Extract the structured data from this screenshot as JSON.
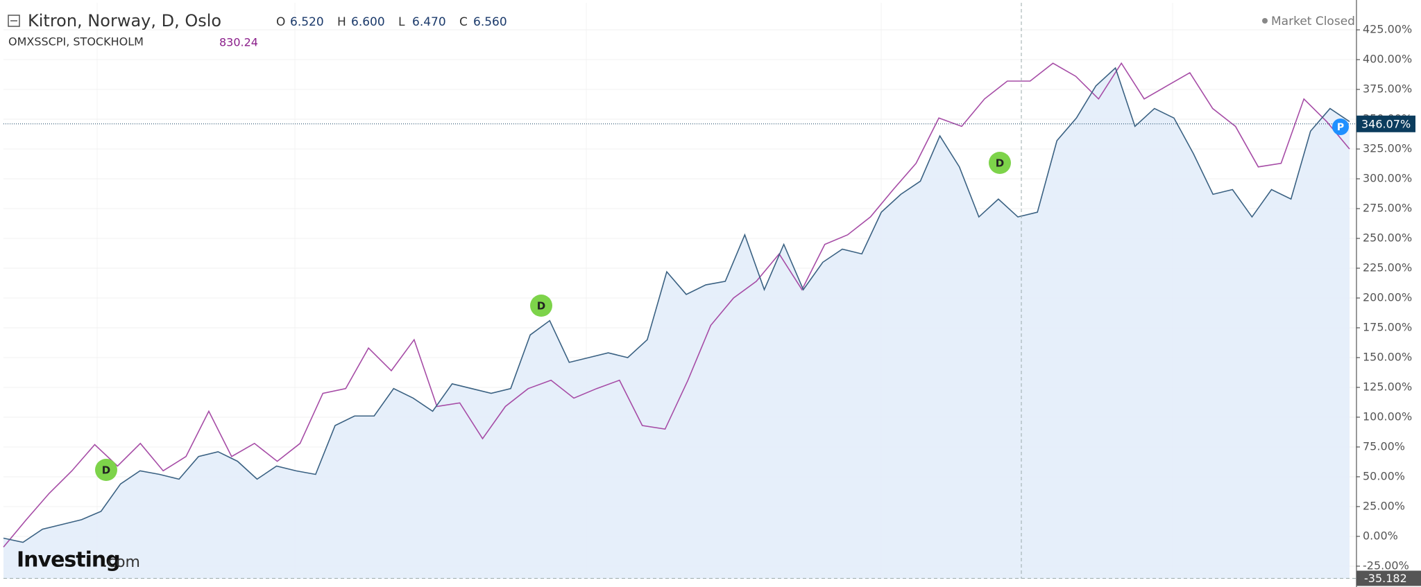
{
  "chart_data": {
    "type": "line",
    "title": "Kitron, Norway, D, Oslo",
    "ohlc": [
      {
        "label": "O",
        "value": "6.520"
      },
      {
        "label": "H",
        "value": "6.600"
      },
      {
        "label": "L",
        "value": "6.470"
      },
      {
        "label": "C",
        "value": "6.560"
      }
    ],
    "compare_title": "OMXSSCPI, STOCKHOLM",
    "compare_value": "830.24",
    "status": "Market Closed",
    "logo": "Investing",
    "logo_suffix": ".com",
    "dividend_marker": "D",
    "price_marker": "P",
    "last_price": {
      "value": 346.07,
      "label": "346.07%"
    },
    "crosshair_value": -35.182,
    "ylim": [
      -35.5,
      447.7
    ],
    "yticks": [
      {
        "value": -25,
        "label": "-25.00%"
      },
      {
        "value": 0,
        "label": "0.00%"
      },
      {
        "value": 25,
        "label": "25.00%"
      },
      {
        "value": 50,
        "label": "50.00%"
      },
      {
        "value": 75,
        "label": "75.00%"
      },
      {
        "value": 100,
        "label": "100.00%"
      },
      {
        "value": 125,
        "label": "125.00%"
      },
      {
        "value": 150,
        "label": "150.00%"
      },
      {
        "value": 175,
        "label": "175.00%"
      },
      {
        "value": 200,
        "label": "200.00%"
      },
      {
        "value": 225,
        "label": "225.00%"
      },
      {
        "value": 250,
        "label": "250.00%"
      },
      {
        "value": 275,
        "label": "275.00%"
      },
      {
        "value": 300,
        "label": "300.00%"
      },
      {
        "value": 325,
        "label": "325.00%"
      },
      {
        "value": 350,
        "label": "350.00%"
      },
      {
        "value": 375,
        "label": "375.00%"
      },
      {
        "value": 400,
        "label": "400.00%"
      },
      {
        "value": 425,
        "label": "425.00%"
      }
    ],
    "grid": true,
    "series": [
      {
        "name": "Kitron",
        "color": "#3a6182",
        "fill": "#e3edf9",
        "values": [
          -1.5,
          -5,
          6,
          10,
          14,
          21,
          44,
          55,
          52,
          48,
          67,
          71,
          63,
          48,
          59,
          55,
          52,
          93,
          101,
          101,
          124,
          116,
          105,
          128,
          124,
          120,
          124,
          169,
          181,
          146,
          150,
          154,
          150,
          165,
          222,
          203,
          211,
          214,
          253,
          207,
          245,
          207,
          230,
          241,
          237,
          272,
          287,
          298,
          336,
          310,
          268,
          283,
          268,
          272,
          332,
          351,
          378,
          393,
          344,
          359,
          351,
          321,
          287,
          291,
          268,
          291,
          283,
          340,
          359,
          348
        ]
      },
      {
        "name": "OMXSSCPI",
        "color": "#a64ca6",
        "values": [
          -9,
          14,
          36,
          55,
          77,
          59,
          78,
          55,
          67,
          105,
          67,
          78,
          63,
          78,
          120,
          124,
          158,
          139,
          165,
          109,
          112,
          82,
          109,
          124,
          131,
          116,
          124,
          131,
          93,
          90,
          131,
          177,
          200,
          214,
          237,
          207,
          245,
          253,
          268,
          291,
          313,
          351,
          344,
          367,
          382,
          382,
          397,
          386,
          367,
          397,
          367,
          378,
          389,
          359,
          344,
          310,
          313,
          367,
          348,
          325
        ]
      }
    ]
  }
}
